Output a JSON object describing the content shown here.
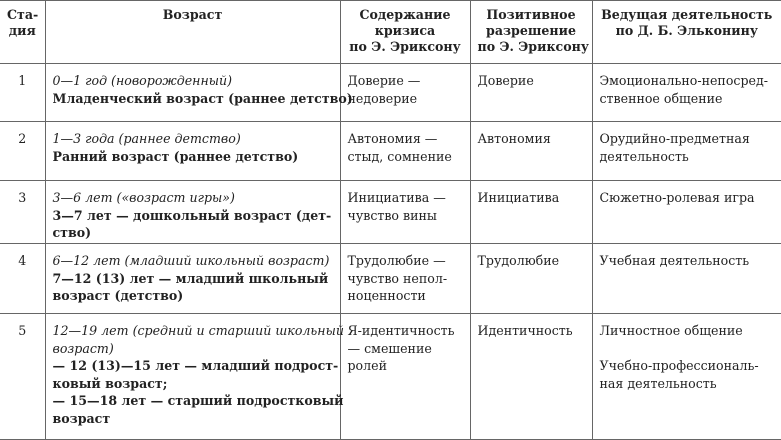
{
  "headers": [
    [
      "Ста-",
      "дия"
    ],
    [
      "Возраст"
    ],
    [
      "Содержание",
      "кризиса",
      "по Э. Эриксону"
    ],
    [
      "Позитивное",
      "разрешение",
      "по Э. Эриксону"
    ],
    [
      "Ведущая деятельность",
      "по Д. Б. Эльконину"
    ]
  ],
  "rows": [
    {
      "stage": "1",
      "age_italic": [
        "0—1 год (новорожденный)"
      ],
      "age_bold": [
        "Младенческий возраст (раннее детство)"
      ],
      "crisis": [
        "Доверие —",
        "недоверие"
      ],
      "positive": [
        "Доверие"
      ],
      "activity": [
        "Эмоционально-непосред-",
        "ственное общение"
      ]
    },
    {
      "stage": "2",
      "age_italic": [
        "1—3 года (раннее детство)"
      ],
      "age_bold": [
        "Ранний возраст (раннее детство)"
      ],
      "crisis": [
        "Автономия —",
        "стыд, сомнение"
      ],
      "positive": [
        "Автономия"
      ],
      "activity": [
        "Орудийно-предметная",
        "деятельность"
      ]
    },
    {
      "stage": "3",
      "age_italic": [
        "3—6 лет («возраст игры»)"
      ],
      "age_bold": [
        "3—7 лет — дошкольный возраст (дет-",
        "ство)"
      ],
      "crisis": [
        "Инициатива —",
        "чувство вины"
      ],
      "positive": [
        "Инициатива"
      ],
      "activity": [
        "Сюжетно-ролевая игра"
      ]
    },
    {
      "stage": "4",
      "age_italic": [
        "6—12 лет (младший школьный возраст)"
      ],
      "age_bold": [
        "7—12 (13) лет — младший школьный",
        "возраст (детство)"
      ],
      "crisis": [
        "Трудолюбие —",
        "чувство непол-",
        "ноценности"
      ],
      "positive": [
        "Трудолюбие"
      ],
      "activity": [
        "Учебная деятельность"
      ]
    },
    {
      "stage": "5",
      "age_italic": [
        "12—19 лет (средний и старший школьный",
        "возраст)"
      ],
      "age_bold": [
        "— 12 (13)—15 лет — младший подрост-",
        "ковый возраст;",
        "— 15—18 лет — старший подростковый",
        "возраст"
      ],
      "crisis": [
        "Я-идентичность",
        "— смешение",
        "ролей"
      ],
      "positive": [
        "Идентичность"
      ],
      "activity": [
        "Личностное общение",
        "",
        "Учебно-профессиональ-",
        "ная деятельность"
      ]
    }
  ]
}
